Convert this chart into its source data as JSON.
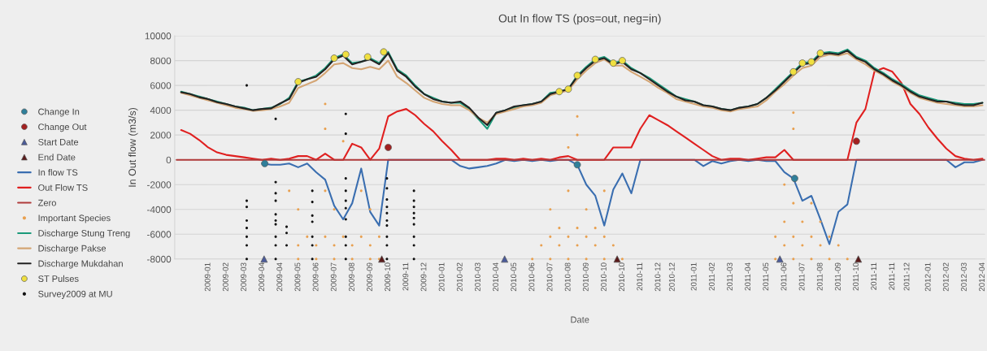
{
  "chart_data": {
    "type": "line",
    "title": "Out In flow TS (pos=out, neg=in)",
    "xlabel": "Date",
    "ylabel": "In Out flow (m3/s)",
    "x": [
      "2008-11-27",
      "2008-12-11",
      "2008-12-25",
      "2009-01-08",
      "2009-01-22",
      "2009-02-05",
      "2009-02-19",
      "2009-03-05",
      "2009-03-19",
      "2009-04-02",
      "2009-04-16",
      "2009-04-30",
      "2009-05-14",
      "2009-05-28",
      "2009-06-11",
      "2009-06-25",
      "2009-07-09",
      "2009-07-23",
      "2009-08-06",
      "2009-08-20",
      "2009-09-03",
      "2009-09-17",
      "2009-10-01",
      "2009-10-15",
      "2009-10-29",
      "2009-11-12",
      "2009-11-26",
      "2009-12-10",
      "2009-12-24",
      "2010-01-07",
      "2010-01-21",
      "2010-02-04",
      "2010-02-18",
      "2010-03-04",
      "2010-03-18",
      "2010-04-01",
      "2010-04-15",
      "2010-04-29",
      "2010-05-13",
      "2010-05-27",
      "2010-06-10",
      "2010-06-24",
      "2010-07-08",
      "2010-07-22",
      "2010-08-05",
      "2010-08-19",
      "2010-09-02",
      "2010-09-16",
      "2010-09-30",
      "2010-10-14",
      "2010-10-28",
      "2010-11-11",
      "2010-11-25",
      "2010-12-09",
      "2010-12-23",
      "2011-01-06",
      "2011-01-20",
      "2011-02-03",
      "2011-02-17",
      "2011-03-03",
      "2011-03-17",
      "2011-03-31",
      "2011-04-14",
      "2011-04-28",
      "2011-05-12",
      "2011-05-26",
      "2011-06-09",
      "2011-06-23",
      "2011-07-07",
      "2011-07-21",
      "2011-08-04",
      "2011-08-18",
      "2011-09-01",
      "2011-09-15",
      "2011-09-29",
      "2011-10-13",
      "2011-10-27",
      "2011-11-10",
      "2011-11-24",
      "2011-12-08",
      "2011-12-22",
      "2012-01-05",
      "2012-01-19",
      "2012-02-02",
      "2012-02-16",
      "2012-03-01",
      "2012-03-15",
      "2012-03-29",
      "2012-04-12",
      "2012-04-26"
    ],
    "xlim": [
      "2008-11-17",
      "2012-04-30"
    ],
    "xticks": [
      {
        "value": "2009-01-08",
        "label": "2009-01"
      },
      {
        "value": "2009-02-05",
        "label": "2009-02"
      },
      {
        "value": "2009-03-05",
        "label": "2009-03"
      },
      {
        "value": "2009-04-02",
        "label": "2009-04"
      },
      {
        "value": "2009-04-30",
        "label": "2009-04"
      },
      {
        "value": "2009-05-28",
        "label": "2009-05"
      },
      {
        "value": "2009-06-25",
        "label": "2009-06"
      },
      {
        "value": "2009-07-23",
        "label": "2009-07"
      },
      {
        "value": "2009-08-20",
        "label": "2009-08"
      },
      {
        "value": "2009-09-17",
        "label": "2009-09"
      },
      {
        "value": "2009-10-15",
        "label": "2009-10"
      },
      {
        "value": "2009-11-12",
        "label": "2009-11"
      },
      {
        "value": "2009-12-10",
        "label": "2009-12"
      },
      {
        "value": "2010-01-07",
        "label": "2010-01"
      },
      {
        "value": "2010-02-04",
        "label": "2010-02"
      },
      {
        "value": "2010-03-04",
        "label": "2010-03"
      },
      {
        "value": "2010-04-01",
        "label": "2010-04"
      },
      {
        "value": "2010-04-29",
        "label": "2010-05"
      },
      {
        "value": "2010-05-27",
        "label": "2010-06"
      },
      {
        "value": "2010-06-24",
        "label": "2010-07"
      },
      {
        "value": "2010-07-22",
        "label": "2010-08"
      },
      {
        "value": "2010-08-19",
        "label": "2010-09"
      },
      {
        "value": "2010-09-16",
        "label": "2010-10"
      },
      {
        "value": "2010-10-14",
        "label": "2010-10"
      },
      {
        "value": "2010-11-11",
        "label": "2010-11"
      },
      {
        "value": "2010-12-09",
        "label": "2010-12"
      },
      {
        "value": "2010-12-31",
        "label": "2010-12"
      },
      {
        "value": "2011-02-03",
        "label": "2011-01"
      },
      {
        "value": "2011-03-03",
        "label": "2011-02"
      },
      {
        "value": "2011-03-31",
        "label": "2011-03"
      },
      {
        "value": "2011-04-28",
        "label": "2011-04"
      },
      {
        "value": "2011-05-26",
        "label": "2011-05"
      },
      {
        "value": "2011-06-23",
        "label": "2011-06"
      },
      {
        "value": "2011-07-21",
        "label": "2011-07"
      },
      {
        "value": "2011-08-18",
        "label": "2011-08"
      },
      {
        "value": "2011-09-15",
        "label": "2011-09"
      },
      {
        "value": "2011-10-13",
        "label": "2011-10"
      },
      {
        "value": "2011-11-10",
        "label": "2011-11"
      },
      {
        "value": "2011-12-08",
        "label": "2011-11"
      },
      {
        "value": "2011-12-31",
        "label": "2011-12"
      },
      {
        "value": "2012-02-02",
        "label": "2012-01"
      },
      {
        "value": "2012-03-01",
        "label": "2012-02"
      },
      {
        "value": "2012-03-29",
        "label": "2012-03"
      },
      {
        "value": "2012-04-26",
        "label": "2012-04"
      }
    ],
    "ylim": [
      -8000,
      10000
    ],
    "yticks": [
      -8000,
      -6000,
      -4000,
      -2000,
      0,
      2000,
      4000,
      6000,
      8000,
      10000
    ],
    "grid": "y",
    "legend": "left",
    "series": [
      {
        "name": "Change In",
        "type": "scatter",
        "marker": "circle",
        "color": "#2f7f9a",
        "x": [
          "2009-04-06",
          "2010-08-05",
          "2011-07-09"
        ],
        "values": [
          -300,
          -400,
          -1500
        ]
      },
      {
        "name": "Change Out",
        "type": "scatter",
        "marker": "circle",
        "color": "#a32020",
        "x": [
          "2009-10-15",
          "2011-10-13"
        ],
        "values": [
          1000,
          1500
        ]
      },
      {
        "name": "Start Date",
        "type": "scatter",
        "marker": "triangle",
        "color": "#4a5a9a",
        "x": [
          "2009-04-05",
          "2010-04-14",
          "2011-06-16"
        ],
        "values": [
          -8000,
          -8000,
          -8000
        ]
      },
      {
        "name": "End Date",
        "type": "scatter",
        "marker": "triangle",
        "color": "#5a1a1a",
        "x": [
          "2009-10-05",
          "2010-10-06",
          "2011-10-16"
        ],
        "values": [
          -8000,
          -8000,
          -8000
        ]
      },
      {
        "name": "In flow TS",
        "color": "#3a6eb0",
        "values": [
          null,
          null,
          null,
          null,
          null,
          null,
          null,
          null,
          null,
          -300,
          -400,
          -400,
          -300,
          -600,
          -300,
          -1000,
          -1600,
          -3700,
          -4800,
          -3500,
          -700,
          -4200,
          -5300,
          0,
          null,
          null,
          null,
          null,
          null,
          null,
          0,
          -500,
          -700,
          -600,
          -500,
          -300,
          0,
          -100,
          0,
          -100,
          0,
          -100,
          0,
          0,
          -400,
          -2000,
          -2900,
          -5300,
          -2400,
          -1100,
          -2700,
          0,
          null,
          null,
          null,
          null,
          null,
          0,
          -500,
          -100,
          -300,
          -100,
          0,
          -100,
          0,
          -100,
          -100,
          -1000,
          -1500,
          -3300,
          -2900,
          -4800,
          -6800,
          -4200,
          -3600,
          0,
          null,
          null,
          null,
          null,
          null,
          null,
          null,
          null,
          null,
          0,
          -600,
          -200,
          -200,
          0
        ]
      },
      {
        "name": "Out Flow TS",
        "color": "#e02020",
        "values": [
          2400,
          2100,
          1600,
          1000,
          600,
          400,
          300,
          200,
          100,
          0,
          100,
          0,
          100,
          300,
          300,
          0,
          500,
          0,
          0,
          1300,
          1000,
          0,
          900,
          3500,
          3900,
          4100,
          3600,
          2900,
          2300,
          1500,
          800,
          0,
          0,
          0,
          0,
          100,
          100,
          0,
          100,
          0,
          100,
          0,
          200,
          300,
          0,
          0,
          0,
          0,
          1000,
          1000,
          1000,
          2500,
          3600,
          3200,
          2800,
          2300,
          1800,
          1300,
          800,
          300,
          0,
          100,
          100,
          0,
          100,
          200,
          200,
          800,
          0,
          0,
          0,
          0,
          0,
          0,
          0,
          3000,
          4100,
          7100,
          7400,
          7100,
          6200,
          4500,
          3700,
          2600,
          1700,
          900,
          300,
          100,
          0,
          100
        ]
      },
      {
        "name": "Zero",
        "color": "#b03a3a",
        "x": [
          "2008-11-20",
          "2012-04-30"
        ],
        "values": [
          0,
          0
        ]
      },
      {
        "name": "Important Species",
        "type": "scatter",
        "color": "#e8a050",
        "x": [
          "2009-05-28",
          "2009-06-25",
          "2009-07-23",
          "2009-08-20",
          "2009-09-17",
          "2009-10-01",
          "2009-05-28",
          "2009-06-25",
          "2009-07-23",
          "2009-08-20",
          "2009-09-17",
          "2009-06-11",
          "2009-07-09",
          "2009-08-06",
          "2009-09-03",
          "2009-10-01",
          "2009-05-28",
          "2009-07-23",
          "2009-09-17",
          "2009-05-14",
          "2009-07-09",
          "2009-09-03",
          "2009-07-09",
          "2009-07-09",
          "2009-08-06",
          "2010-05-27",
          "2010-06-24",
          "2010-07-22",
          "2010-08-19",
          "2010-09-16",
          "2010-10-14",
          "2010-06-10",
          "2010-07-08",
          "2010-08-05",
          "2010-09-02",
          "2010-09-30",
          "2010-06-24",
          "2010-07-22",
          "2010-08-19",
          "2010-09-16",
          "2010-07-08",
          "2010-08-05",
          "2010-09-02",
          "2010-06-24",
          "2010-08-19",
          "2010-07-22",
          "2010-09-16",
          "2010-08-05",
          "2010-08-05",
          "2010-07-22",
          "2011-06-09",
          "2011-07-07",
          "2011-08-04",
          "2011-09-01",
          "2011-09-29",
          "2011-06-23",
          "2011-07-21",
          "2011-08-18",
          "2011-09-15",
          "2011-06-09",
          "2011-07-07",
          "2011-08-04",
          "2011-09-01",
          "2011-06-23",
          "2011-07-21",
          "2011-08-18",
          "2011-07-07",
          "2011-08-04",
          "2011-06-23",
          "2011-07-07",
          "2011-07-07"
        ],
        "values": [
          -8000,
          -8000,
          -8000,
          -8000,
          -8000,
          -8000,
          -6900,
          -6900,
          -6900,
          -6900,
          -6900,
          -6200,
          -6200,
          -6200,
          -6200,
          -6200,
          -4000,
          -4000,
          -4000,
          -2500,
          -2500,
          -2500,
          4500,
          2500,
          1500,
          -8000,
          -8000,
          -8000,
          -8000,
          -8000,
          -8000,
          -6900,
          -6900,
          -6900,
          -6900,
          -6900,
          -6200,
          -6200,
          -6200,
          -6200,
          -5500,
          -5500,
          -5500,
          -4000,
          -4000,
          -2500,
          -2500,
          3500,
          2000,
          1000,
          -8000,
          -8000,
          -8000,
          -8000,
          -8000,
          -6900,
          -6900,
          -6900,
          -6900,
          -6200,
          -6200,
          -6200,
          -6200,
          -5000,
          -5000,
          -5000,
          -3500,
          -3500,
          -2000,
          3800,
          2500
        ]
      },
      {
        "name": "Discharge Stung Treng",
        "color": "#1a9a7a",
        "values": [
          5500,
          5300,
          5100,
          4900,
          4700,
          4500,
          4300,
          4200,
          4000,
          4100,
          4200,
          4500,
          5000,
          6300,
          6500,
          6800,
          7400,
          8200,
          8500,
          7800,
          7900,
          8200,
          7800,
          8700,
          7300,
          6800,
          6000,
          5300,
          5000,
          4700,
          4600,
          4600,
          4100,
          3300,
          2500,
          3800,
          4000,
          4200,
          4400,
          4500,
          4700,
          5400,
          5500,
          5700,
          6800,
          7500,
          8100,
          8300,
          7800,
          8000,
          7400,
          7000,
          6600,
          6100,
          5600,
          5100,
          4900,
          4700,
          4400,
          4300,
          4100,
          4000,
          4200,
          4300,
          4500,
          5000,
          5700,
          6400,
          7100,
          7800,
          7900,
          8600,
          8700,
          8600,
          8900,
          8300,
          8000,
          7400,
          7000,
          6500,
          6100,
          5600,
          5200,
          5000,
          4800,
          4700,
          4600,
          4500,
          4500,
          4600
        ]
      },
      {
        "name": "Discharge Pakse",
        "color": "#d4a574",
        "values": [
          5400,
          5200,
          5000,
          4800,
          4600,
          4400,
          4200,
          4100,
          3950,
          4000,
          4100,
          4300,
          4600,
          5800,
          6100,
          6400,
          7000,
          7700,
          7800,
          7400,
          7300,
          7500,
          7300,
          8000,
          6700,
          6200,
          5600,
          5000,
          4700,
          4500,
          4400,
          4400,
          4000,
          3400,
          3000,
          3700,
          3900,
          4100,
          4300,
          4400,
          4600,
          5200,
          5400,
          5600,
          6500,
          7200,
          7800,
          8100,
          7600,
          7600,
          7100,
          6700,
          6300,
          5800,
          5400,
          4900,
          4700,
          4500,
          4300,
          4200,
          4000,
          3900,
          4100,
          4200,
          4300,
          4800,
          5500,
          6100,
          6800,
          7400,
          7600,
          8300,
          8500,
          8400,
          8600,
          8100,
          7700,
          7200,
          6800,
          6300,
          5900,
          5400,
          5000,
          4800,
          4600,
          4500,
          4400,
          4300,
          4300,
          4400
        ]
      },
      {
        "name": "Discharge Mukdahan",
        "color": "#222222",
        "values": [
          5450,
          5300,
          5050,
          4900,
          4650,
          4500,
          4300,
          4150,
          4000,
          4100,
          4150,
          4550,
          4900,
          6200,
          6500,
          6700,
          7300,
          8100,
          8400,
          7700,
          7900,
          8100,
          7700,
          8600,
          7200,
          6700,
          5900,
          5300,
          4900,
          4700,
          4600,
          4700,
          4200,
          3400,
          2800,
          3800,
          4000,
          4300,
          4400,
          4500,
          4700,
          5300,
          5500,
          5700,
          6700,
          7400,
          8000,
          8200,
          7700,
          7900,
          7300,
          7000,
          6500,
          6000,
          5500,
          5100,
          4800,
          4700,
          4400,
          4300,
          4100,
          4000,
          4200,
          4300,
          4500,
          5000,
          5600,
          6300,
          7000,
          7700,
          7800,
          8500,
          8600,
          8500,
          8800,
          8200,
          7900,
          7300,
          6900,
          6400,
          6000,
          5500,
          5100,
          4900,
          4700,
          4700,
          4500,
          4400,
          4400,
          4600
        ]
      },
      {
        "name": "ST Pulses",
        "type": "scatter",
        "marker": "circle",
        "color": "#f0e040",
        "x": [
          "2009-05-28",
          "2009-07-23",
          "2009-08-10",
          "2009-09-13",
          "2009-10-08",
          "2010-07-08",
          "2010-07-22",
          "2010-08-05",
          "2010-09-02",
          "2010-09-30",
          "2010-10-14",
          "2011-07-07",
          "2011-07-21",
          "2011-08-04",
          "2011-08-18"
        ],
        "values": [
          6300,
          8200,
          8500,
          8300,
          8700,
          5500,
          5700,
          6800,
          8100,
          7800,
          8000,
          7100,
          7800,
          7900,
          8600
        ]
      },
      {
        "name": "Survey2009 at MU",
        "type": "scatter",
        "color": "#111111",
        "x": [
          "2009-03-09",
          "2009-03-09",
          "2009-03-09",
          "2009-03-09",
          "2009-03-09",
          "2009-03-09",
          "2009-03-09",
          "2009-03-09",
          "2009-04-23",
          "2009-04-23",
          "2009-04-23",
          "2009-04-23",
          "2009-04-23",
          "2009-04-23",
          "2009-04-23",
          "2009-04-23",
          "2009-04-23",
          "2009-04-23",
          "2009-05-10",
          "2009-05-10",
          "2009-05-10",
          "2009-06-19",
          "2009-06-19",
          "2009-06-19",
          "2009-06-19",
          "2009-06-19",
          "2009-06-19",
          "2009-06-19",
          "2009-08-10",
          "2009-08-10",
          "2009-08-10",
          "2009-08-10",
          "2009-08-10",
          "2009-08-10",
          "2009-08-10",
          "2009-08-10",
          "2009-08-10",
          "2009-08-10",
          "2009-10-13",
          "2009-10-13",
          "2009-10-13",
          "2009-10-13",
          "2009-10-13",
          "2009-10-13",
          "2009-10-13",
          "2009-10-13",
          "2009-10-13",
          "2009-10-13",
          "2009-11-24",
          "2009-11-24",
          "2009-11-24",
          "2009-11-24",
          "2009-11-24",
          "2009-11-24",
          "2009-11-24",
          "2009-11-24",
          "2009-11-24"
        ],
        "values": [
          6000,
          -3300,
          -3800,
          -4900,
          -5500,
          -6200,
          -6900,
          -8000,
          3300,
          -1800,
          -2700,
          -3300,
          -4400,
          -4900,
          -5200,
          -6200,
          -6900,
          -8000,
          -5400,
          -5900,
          -6900,
          -2500,
          -3400,
          -4500,
          -5000,
          -6200,
          -6900,
          -8000,
          3700,
          2100,
          -1500,
          -2500,
          -3300,
          -3900,
          -4800,
          -6200,
          -6900,
          -8000,
          -1500,
          -2300,
          -3200,
          -3800,
          -4300,
          -4900,
          -5300,
          -6200,
          -6900,
          -8000,
          -2500,
          -3300,
          -3800,
          -4300,
          -4700,
          -5200,
          -6200,
          -6900,
          -8000
        ]
      }
    ]
  }
}
